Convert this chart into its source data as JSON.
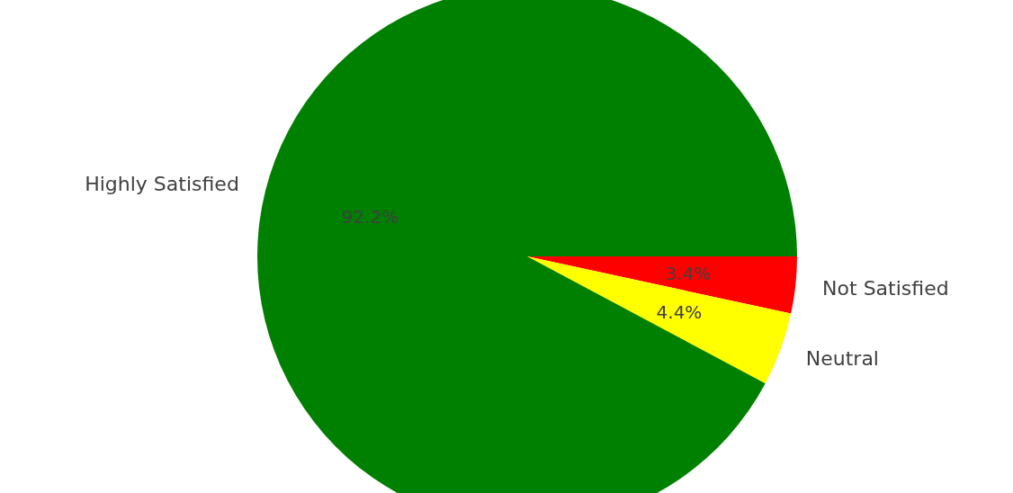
{
  "chart_data": {
    "type": "pie",
    "categories": [
      "Not Satisfied",
      "Neutral",
      "Highly Satisfied"
    ],
    "values": [
      3.4,
      4.4,
      92.2
    ],
    "colors": [
      "#ff0000",
      "#ffff00",
      "#008000"
    ],
    "value_labels": [
      "3.4%",
      "4.4%",
      "92.2%"
    ]
  }
}
